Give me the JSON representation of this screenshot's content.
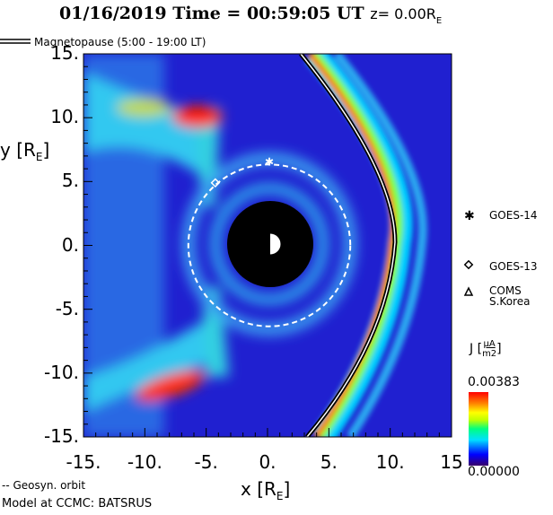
{
  "title": {
    "date_time": "01/16/2019 Time = 00:59:05 UT",
    "plane": "z= 0.00R",
    "plane_sub": "E"
  },
  "legend": {
    "magnetopause": "Magnetopause (5:00 - 19:00 LT)",
    "geosyn": "-- Geosyn. orbit",
    "model": "Model at CCMC: BATSRUS"
  },
  "satellites": [
    {
      "name": "GOES-14",
      "symbol": "asterisk",
      "x": 0.0,
      "y": 6.6
    },
    {
      "name": "GOES-13",
      "symbol": "diamond",
      "x": -4.4,
      "y": 4.9
    },
    {
      "name": "COMS S.Korea",
      "label1": "COMS",
      "label2": "S.Korea",
      "symbol": "triangle"
    }
  ],
  "colorbar": {
    "label": "J",
    "unit_num": "μA",
    "unit_den": "m2",
    "max_label": "0.00383",
    "min_label": "0.00000",
    "colors": [
      "#3a006a",
      "#0000ff",
      "#00e0ff",
      "#00ff80",
      "#c0ff00",
      "#ffff00",
      "#ff8000",
      "#ff0000"
    ]
  },
  "chart_data": {
    "type": "heatmap",
    "title": "01/16/2019 Time = 00:59:05 UT z= 0.00RE",
    "xlabel": "x [RE]",
    "ylabel": "y [RE]",
    "xlim": [
      -15,
      15
    ],
    "ylim": [
      -15,
      15
    ],
    "xticks": [
      -15,
      -10,
      -5,
      0,
      5,
      10,
      15
    ],
    "xtick_labels": [
      "-15.",
      "-10.",
      "-5.",
      "0.",
      "5.",
      "10.",
      "15"
    ],
    "yticks": [
      15,
      10,
      5,
      0,
      -5,
      -10,
      -15
    ],
    "ytick_labels": [
      "15.",
      "10.",
      "5.",
      "0.",
      "-5.",
      "-10.",
      "-15."
    ],
    "geosync_radius": 6.6,
    "value_range": [
      0,
      0.00383
    ]
  }
}
